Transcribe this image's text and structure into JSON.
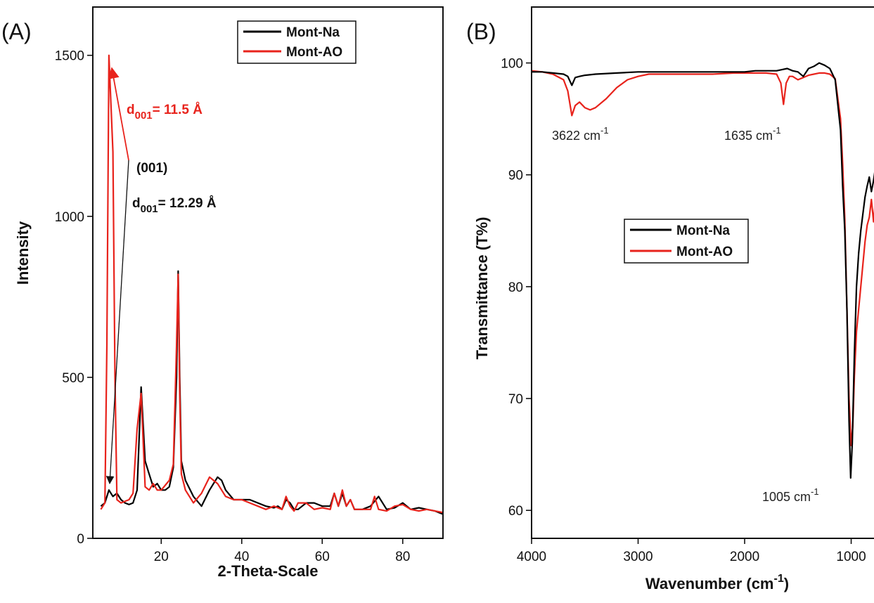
{
  "colors": {
    "mont_na": "#000000",
    "mont_ao": "#e8231c",
    "axis": "#111111"
  },
  "chart_data": [
    {
      "type": "line",
      "panel_label": "(A)",
      "xlabel": "2-Theta-Scale",
      "ylabel": "Intensity",
      "xlim": [
        3,
        90
      ],
      "ylim": [
        0,
        1650
      ],
      "xticks": [
        20,
        40,
        60,
        80
      ],
      "yticks": [
        0,
        500,
        1000,
        1500
      ],
      "legend_position": "top-right",
      "series": [
        {
          "name": "Mont-Na",
          "x": [
            5,
            6,
            7,
            8,
            9,
            10,
            11,
            12,
            13,
            14,
            15,
            16,
            17,
            18,
            19,
            20,
            21,
            22,
            23,
            23.8,
            24.2,
            24.6,
            25,
            26,
            28,
            30,
            32,
            33,
            34,
            35,
            36,
            38,
            40,
            42,
            44,
            46,
            48,
            49,
            50,
            51,
            52,
            53,
            54,
            56,
            58,
            60,
            62,
            63,
            64,
            65,
            66,
            67,
            68,
            70,
            72,
            74,
            76,
            78,
            80,
            82,
            84,
            86,
            88,
            90
          ],
          "y": [
            100,
            110,
            150,
            130,
            140,
            120,
            110,
            105,
            110,
            150,
            470,
            240,
            200,
            160,
            170,
            150,
            150,
            160,
            220,
            500,
            830,
            500,
            240,
            180,
            130,
            100,
            150,
            170,
            190,
            180,
            150,
            120,
            120,
            120,
            110,
            100,
            95,
            100,
            90,
            120,
            110,
            90,
            90,
            110,
            110,
            100,
            100,
            140,
            100,
            140,
            100,
            120,
            90,
            90,
            100,
            130,
            90,
            95,
            110,
            90,
            95,
            90,
            85,
            75
          ]
        },
        {
          "name": "Mont-AO",
          "x": [
            5,
            6,
            6.5,
            7,
            8,
            8.5,
            9,
            10,
            12,
            13,
            14,
            15,
            16,
            17,
            18,
            19,
            20,
            22,
            23,
            23.8,
            24.2,
            24.6,
            25,
            26,
            28,
            30,
            32,
            34,
            36,
            38,
            40,
            42,
            44,
            46,
            48,
            50,
            51,
            52,
            53,
            54,
            56,
            58,
            60,
            62,
            63,
            64,
            65,
            66,
            67,
            68,
            70,
            72,
            73,
            74,
            76,
            78,
            80,
            82,
            84,
            86,
            88,
            90
          ],
          "y": [
            90,
            110,
            600,
            1500,
            1200,
            500,
            120,
            110,
            120,
            140,
            340,
            450,
            160,
            150,
            170,
            150,
            150,
            180,
            230,
            600,
            820,
            450,
            200,
            150,
            110,
            140,
            190,
            170,
            130,
            120,
            120,
            110,
            100,
            90,
            100,
            90,
            130,
            100,
            85,
            110,
            110,
            90,
            95,
            90,
            140,
            100,
            150,
            100,
            120,
            90,
            90,
            90,
            130,
            90,
            85,
            100,
            105,
            90,
            85,
            90,
            85,
            80
          ]
        }
      ],
      "annotations": [
        {
          "text_main": "d",
          "text_sub": "001",
          "text_tail": "= 11.5 Å",
          "color": "red"
        },
        {
          "text_main": "(001)",
          "color": "black"
        },
        {
          "text_main": "d",
          "text_sub": "001",
          "text_tail": "= 12.29 Å",
          "color": "black"
        }
      ]
    },
    {
      "type": "line",
      "panel_label": "(B)",
      "xlabel_main": "Wavenumber (cm",
      "xlabel_sup": "-1",
      "xlabel_tail": ")",
      "ylabel": "Transmittance (T%)",
      "xlim": [
        4000,
        700
      ],
      "ylim": [
        57.5,
        105
      ],
      "xticks": [
        4000,
        3000,
        2000,
        1000
      ],
      "yticks": [
        60,
        70,
        80,
        90,
        100
      ],
      "legend_position": "center-left",
      "series": [
        {
          "name": "Mont-Na",
          "x": [
            4000,
            3900,
            3800,
            3700,
            3660,
            3622,
            3590,
            3550,
            3500,
            3400,
            3200,
            3000,
            2800,
            2500,
            2300,
            2100,
            2000,
            1900,
            1800,
            1700,
            1650,
            1600,
            1550,
            1500,
            1450,
            1400,
            1350,
            1300,
            1250,
            1200,
            1150,
            1100,
            1080,
            1060,
            1040,
            1020,
            1005,
            990,
            970,
            950,
            930,
            910,
            890,
            870,
            850,
            830,
            810,
            790,
            770,
            750,
            730,
            700
          ],
          "y": [
            99.2,
            99.2,
            99.1,
            99.0,
            98.8,
            98.0,
            98.7,
            98.8,
            98.9,
            99.0,
            99.1,
            99.2,
            99.2,
            99.2,
            99.2,
            99.2,
            99.2,
            99.3,
            99.3,
            99.3,
            99.4,
            99.5,
            99.3,
            99.2,
            98.8,
            99.5,
            99.7,
            100.0,
            99.8,
            99.5,
            98.5,
            94.0,
            89.0,
            85.0,
            78.0,
            68.0,
            62.9,
            66.0,
            74.0,
            80.0,
            83.0,
            85.0,
            86.5,
            88.0,
            89.0,
            89.8,
            88.5,
            89.5,
            90.8,
            91.3,
            91.3,
            91.0
          ]
        },
        {
          "name": "Mont-AO",
          "x": [
            4000,
            3900,
            3800,
            3700,
            3660,
            3622,
            3590,
            3550,
            3500,
            3450,
            3400,
            3300,
            3200,
            3100,
            3000,
            2900,
            2700,
            2500,
            2300,
            2100,
            2000,
            1900,
            1800,
            1700,
            1660,
            1635,
            1610,
            1580,
            1550,
            1500,
            1450,
            1400,
            1350,
            1300,
            1250,
            1200,
            1150,
            1100,
            1080,
            1060,
            1040,
            1020,
            1000,
            985,
            970,
            950,
            930,
            910,
            890,
            870,
            850,
            830,
            810,
            790,
            770,
            750,
            730,
            700
          ],
          "y": [
            99.3,
            99.2,
            99.0,
            98.5,
            97.5,
            95.3,
            96.2,
            96.5,
            96.0,
            95.8,
            96.0,
            96.8,
            97.8,
            98.5,
            98.8,
            99.0,
            99.0,
            99.0,
            99.0,
            99.1,
            99.1,
            99.1,
            99.1,
            99.0,
            98.2,
            96.3,
            98.2,
            98.8,
            98.8,
            98.5,
            98.7,
            98.9,
            99.0,
            99.1,
            99.1,
            99.0,
            98.6,
            95.0,
            91.0,
            86.0,
            78.0,
            70.0,
            65.8,
            67.5,
            72.0,
            76.0,
            78.0,
            80.0,
            82.0,
            84.0,
            85.5,
            86.2,
            87.8,
            85.8,
            88.0,
            88.4,
            88.6,
            88.4
          ]
        }
      ],
      "annotations": [
        {
          "text_main": "3622 cm",
          "text_sup": "-1",
          "color": "black"
        },
        {
          "text_main": "1635 cm",
          "text_sup": "-1",
          "color": "red"
        },
        {
          "text_main": "1005 cm",
          "text_sup": "-1",
          "color": "black"
        }
      ]
    }
  ]
}
